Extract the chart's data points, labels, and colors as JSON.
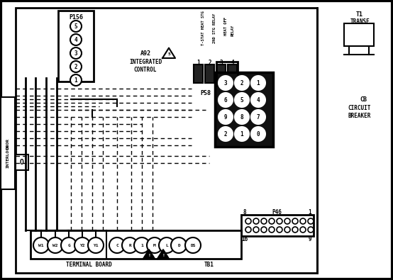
{
  "bg_color": "#ffffff",
  "line_color": "#000000",
  "figsize": [
    5.54,
    3.95
  ],
  "dpi": 100,
  "p156_labels": [
    "5",
    "4",
    "3",
    "2",
    "1"
  ],
  "p58_grid": [
    [
      "3",
      "2",
      "1"
    ],
    [
      "6",
      "5",
      "4"
    ],
    [
      "9",
      "8",
      "7"
    ],
    [
      "2",
      "1",
      "0"
    ]
  ],
  "terminal_left": [
    [
      "W1",
      58
    ],
    [
      "W2",
      78
    ],
    [
      "G",
      97
    ],
    [
      "Y2",
      116
    ],
    [
      "Y1",
      135
    ]
  ],
  "terminal_right": [
    [
      "C",
      165
    ],
    [
      "R",
      183
    ],
    [
      "1",
      200
    ],
    [
      "M",
      218
    ],
    [
      "L",
      235
    ],
    [
      "D",
      252
    ],
    [
      "DS",
      272
    ]
  ],
  "p46_top_labels": [
    [
      "8",
      345
    ],
    [
      "P46",
      390
    ],
    [
      "1",
      437
    ]
  ],
  "p46_bot_labels": [
    [
      "16",
      345
    ],
    [
      "9",
      437
    ]
  ]
}
